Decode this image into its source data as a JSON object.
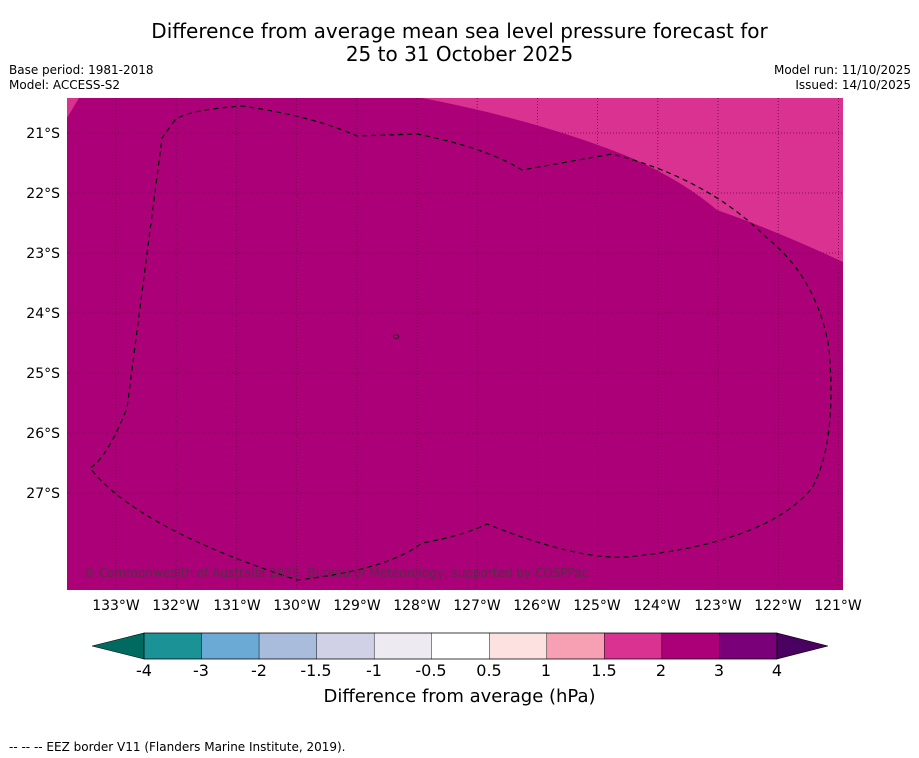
{
  "title": {
    "line1": "Difference from average mean sea level pressure forecast for",
    "line2": "25 to 31 October 2025"
  },
  "meta": {
    "base_period": "Base period: 1981-2018",
    "model": "Model: ACCESS-S2",
    "model_run": "Model run: 11/10/2025",
    "issued": "Issued: 14/10/2025"
  },
  "map": {
    "lat_labels": [
      "21°S",
      "22°S",
      "23°S",
      "24°S",
      "25°S",
      "26°S",
      "27°S"
    ],
    "lon_labels": [
      "133°W",
      "132°W",
      "131°W",
      "130°W",
      "129°W",
      "128°W",
      "127°W",
      "126°W",
      "125°W",
      "124°W",
      "123°W",
      "122°W",
      "121°W"
    ],
    "copyright": "© Commonwealth of Australia 2025, Bureau of Meteorology, supported by COSPPac",
    "colors": {
      "base_fill": "#ab0077",
      "upper_fill": "#d93290",
      "grid": "#6b0048"
    }
  },
  "colorbar": {
    "ticks": [
      "-4",
      "-3",
      "-2",
      "-1.5",
      "-1",
      "-0.5",
      "0.5",
      "1",
      "1.5",
      "2",
      "3",
      "4"
    ],
    "colors": [
      "#1a9296",
      "#6aaad4",
      "#a9bcdc",
      "#d0d0e6",
      "#eeeaf2",
      "#ffffff",
      "#fde0e0",
      "#f7a0b4",
      "#d93290",
      "#ab0077",
      "#7a0079"
    ],
    "under_color": "#006a60",
    "over_color": "#4a0060",
    "label": "Difference from average (hPa)"
  },
  "footer": {
    "eez": "--  --  -- EEZ border V11 (Flanders Marine Institute, 2019)."
  }
}
